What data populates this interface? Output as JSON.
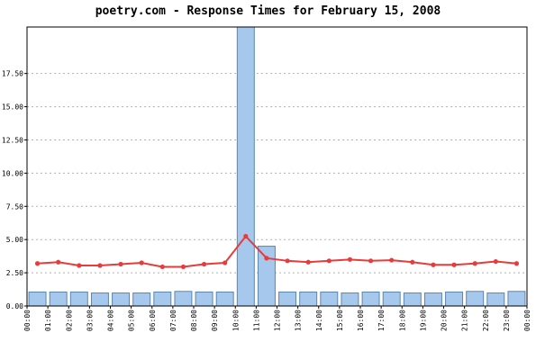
{
  "chart_data": {
    "type": "bar",
    "title": "poetry.com - Response Times for February 15, 2008",
    "ylim": [
      0,
      21
    ],
    "y_ticks": [
      0,
      2.5,
      5,
      7.5,
      10,
      12.5,
      15,
      17.5
    ],
    "y_tick_labels": [
      "0.00",
      "2.50",
      "5.00",
      "7.50",
      "10.00",
      "12.50",
      "15.00",
      "17.50"
    ],
    "x_tick_labels": [
      "00:00",
      "01:00",
      "02:00",
      "03:00",
      "04:00",
      "05:00",
      "06:00",
      "07:00",
      "08:00",
      "09:00",
      "10:00",
      "11:00",
      "12:00",
      "13:00",
      "14:00",
      "15:00",
      "16:00",
      "17:00",
      "18:00",
      "19:00",
      "20:00",
      "21:00",
      "22:00",
      "23:00",
      "00:00"
    ],
    "grid": true,
    "series": [
      {
        "type": "bar",
        "values": [
          1.05,
          1.05,
          1.05,
          0.98,
          0.98,
          0.98,
          1.05,
          1.1,
          1.05,
          1.05,
          21.0,
          4.5,
          1.05,
          1.05,
          1.05,
          0.98,
          1.05,
          1.05,
          0.98,
          0.98,
          1.05,
          1.1,
          0.98,
          1.1
        ],
        "color": "#a6c8ec"
      },
      {
        "type": "line",
        "values": [
          3.2,
          3.3,
          3.05,
          3.05,
          3.15,
          3.25,
          2.95,
          2.95,
          3.15,
          3.25,
          5.25,
          3.6,
          3.4,
          3.3,
          3.4,
          3.5,
          3.4,
          3.45,
          3.3,
          3.1,
          3.1,
          3.2,
          3.35,
          3.2
        ],
        "color": "#e83b3b"
      }
    ]
  }
}
